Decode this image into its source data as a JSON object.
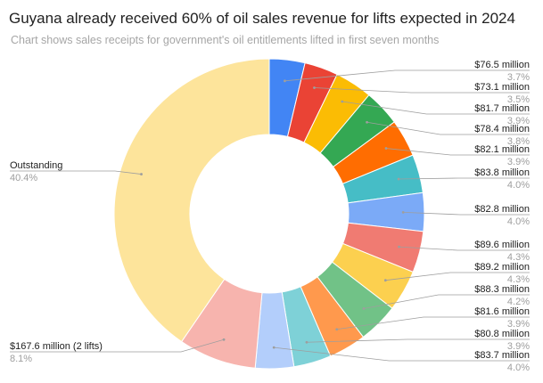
{
  "title": "Guyana already received 60% of oil sales revenue for lifts expected in 2024",
  "subtitle": "Chart shows sales receipts for government's oil entitlements lifted in first seven months",
  "chart_data": {
    "type": "donut",
    "slices": [
      {
        "label": "$76.5 million",
        "value": 3.7,
        "pct_label": "3.7%",
        "color": "#4285f4",
        "side": "right"
      },
      {
        "label": "$73.1 million",
        "value": 3.5,
        "pct_label": "3.5%",
        "color": "#ea4335",
        "side": "right"
      },
      {
        "label": "$81.7 million",
        "value": 3.9,
        "pct_label": "3.9%",
        "color": "#fbbc04",
        "side": "right"
      },
      {
        "label": "$78.4 million",
        "value": 3.8,
        "pct_label": "3.8%",
        "color": "#34a853",
        "side": "right"
      },
      {
        "label": "$82.1 million",
        "value": 3.9,
        "pct_label": "3.9%",
        "color": "#ff6d01",
        "side": "right"
      },
      {
        "label": "$83.8 million",
        "value": 4.0,
        "pct_label": "4.0%",
        "color": "#46bdc6",
        "side": "right"
      },
      {
        "label": "$82.8 million",
        "value": 4.0,
        "pct_label": "4.0%",
        "color": "#7baaf7",
        "side": "right"
      },
      {
        "label": "$89.6 million",
        "value": 4.3,
        "pct_label": "4.3%",
        "color": "#f07b72",
        "side": "right"
      },
      {
        "label": "$89.2 million",
        "value": 4.3,
        "pct_label": "4.3%",
        "color": "#fcd04f",
        "side": "right"
      },
      {
        "label": "$88.3 million",
        "value": 4.2,
        "pct_label": "4.2%",
        "color": "#71c287",
        "side": "right"
      },
      {
        "label": "$81.6 million",
        "value": 3.9,
        "pct_label": "3.9%",
        "color": "#ff994d",
        "side": "right"
      },
      {
        "label": "$80.8 million",
        "value": 3.9,
        "pct_label": "3.9%",
        "color": "#7ed1d7",
        "side": "right"
      },
      {
        "label": "$83.7 million",
        "value": 4.0,
        "pct_label": "4.0%",
        "color": "#b3cefb",
        "side": "right"
      },
      {
        "label": "$167.6 million (2 lifts)",
        "value": 8.1,
        "pct_label": "8.1%",
        "color": "#f7b4ae",
        "side": "left"
      },
      {
        "label": "Outstanding",
        "value": 40.4,
        "pct_label": "40.4%",
        "color": "#fde49b",
        "side": "left"
      }
    ]
  }
}
